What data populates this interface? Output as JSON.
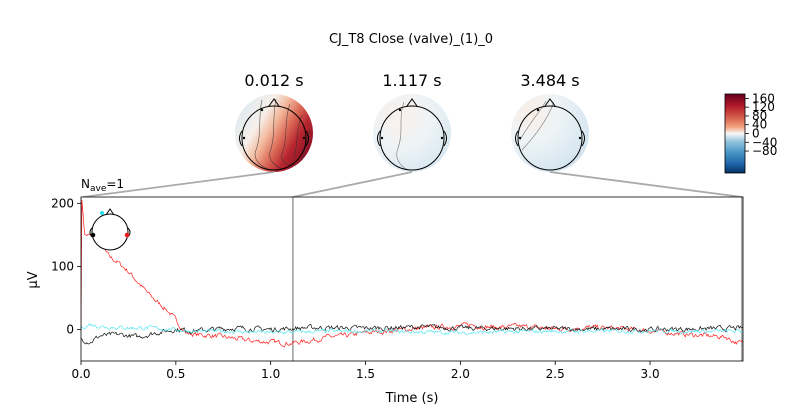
{
  "figure": {
    "suptitle": "CJ_T8 Close (valve)_(1)_0"
  },
  "colors": {
    "series": [
      "#ff2222",
      "#111111",
      "#55e8f0"
    ],
    "connector": "#aaaaaa"
  },
  "chart_data": {
    "type": "line",
    "xlabel": "Time (s)",
    "ylabel": "µV",
    "xlim": [
      0.0,
      3.49
    ],
    "ylim": [
      -50,
      210
    ],
    "xticks": [
      0.0,
      0.5,
      1.0,
      1.5,
      2.0,
      2.5,
      3.0
    ],
    "xtick_labels": [
      "0.0",
      "0.5",
      "1.0",
      "1.5",
      "2.0",
      "2.5",
      "3.0"
    ],
    "yticks": [
      0,
      100,
      200
    ],
    "ytick_labels": [
      "0",
      "100",
      "200"
    ],
    "nave": {
      "prefix": "N",
      "sub": "ave",
      "suffix": "=1"
    },
    "series_envelopes": [
      {
        "color": "#ff2222",
        "points": [
          [
            0.0,
            0
          ],
          [
            0.005,
            205
          ],
          [
            0.02,
            150
          ],
          [
            0.06,
            148
          ],
          [
            0.1,
            135
          ],
          [
            0.15,
            115
          ],
          [
            0.2,
            105
          ],
          [
            0.25,
            92
          ],
          [
            0.3,
            75
          ],
          [
            0.35,
            58
          ],
          [
            0.4,
            44
          ],
          [
            0.45,
            32
          ],
          [
            0.5,
            15
          ],
          [
            0.55,
            -5
          ],
          [
            0.6,
            -8
          ],
          [
            0.7,
            -10
          ],
          [
            0.8,
            -14
          ],
          [
            0.9,
            -18
          ],
          [
            1.0,
            -20
          ],
          [
            1.1,
            -22
          ],
          [
            1.2,
            -18
          ],
          [
            1.3,
            -12
          ],
          [
            1.4,
            -10
          ],
          [
            1.5,
            -5
          ],
          [
            1.6,
            -3
          ],
          [
            1.7,
            0
          ],
          [
            1.8,
            2
          ],
          [
            1.9,
            4
          ],
          [
            2.0,
            5
          ],
          [
            2.05,
            8
          ],
          [
            2.1,
            5
          ],
          [
            2.2,
            3
          ],
          [
            2.3,
            5
          ],
          [
            2.4,
            3
          ],
          [
            2.5,
            1
          ],
          [
            2.6,
            2
          ],
          [
            2.7,
            3
          ],
          [
            2.8,
            2
          ],
          [
            2.9,
            0
          ],
          [
            3.0,
            -2
          ],
          [
            3.1,
            -5
          ],
          [
            3.2,
            -8
          ],
          [
            3.3,
            -10
          ],
          [
            3.4,
            -12
          ],
          [
            3.45,
            -20
          ],
          [
            3.49,
            -22
          ]
        ],
        "noise": 5
      },
      {
        "color": "#111111",
        "points": [
          [
            0.0,
            -15
          ],
          [
            0.05,
            -20
          ],
          [
            0.1,
            -10
          ],
          [
            0.2,
            -8
          ],
          [
            0.3,
            -12
          ],
          [
            0.4,
            -5
          ],
          [
            0.5,
            0
          ],
          [
            0.6,
            -2
          ],
          [
            0.8,
            2
          ],
          [
            1.0,
            0
          ],
          [
            1.2,
            3
          ],
          [
            1.5,
            2
          ],
          [
            1.8,
            4
          ],
          [
            2.0,
            2
          ],
          [
            2.5,
            1
          ],
          [
            3.0,
            0
          ],
          [
            3.3,
            1
          ],
          [
            3.49,
            2
          ]
        ],
        "noise": 5
      },
      {
        "color": "#55e8f0",
        "points": [
          [
            0.0,
            2
          ],
          [
            0.05,
            8
          ],
          [
            0.1,
            5
          ],
          [
            0.2,
            3
          ],
          [
            0.4,
            2
          ],
          [
            0.6,
            -3
          ],
          [
            0.8,
            -3
          ],
          [
            1.0,
            -5
          ],
          [
            1.3,
            -3
          ],
          [
            1.6,
            -3
          ],
          [
            2.0,
            -5
          ],
          [
            2.5,
            -3
          ],
          [
            3.0,
            -2
          ],
          [
            3.3,
            -3
          ],
          [
            3.49,
            -3
          ]
        ],
        "noise": 4
      }
    ],
    "vlines": [
      1.117,
      3.484
    ]
  },
  "topomaps": [
    {
      "time_label": "0.012 s",
      "time": 0.012,
      "variant": "strong"
    },
    {
      "time_label": "1.117 s",
      "time": 1.117,
      "variant": "weak"
    },
    {
      "time_label": "3.484 s",
      "time": 3.484,
      "variant": "weak2"
    }
  ],
  "colorbar": {
    "tick_labels": [
      "160",
      "120",
      "80",
      "40",
      "0",
      "−40",
      "−80"
    ],
    "tick_values": [
      160,
      120,
      80,
      40,
      0,
      -40,
      -80
    ],
    "range": [
      -180,
      180
    ]
  }
}
